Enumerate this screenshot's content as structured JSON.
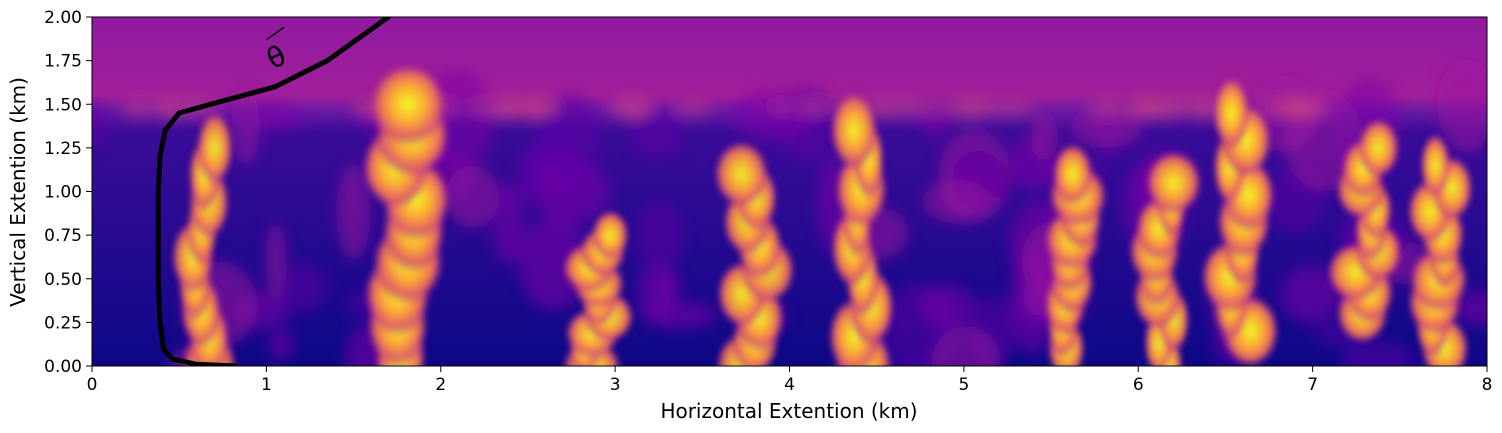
{
  "chart_data": {
    "type": "heatmap",
    "xlabel": "Horizontal Extention (km)",
    "ylabel": "Vertical Extention (km)",
    "xlim": [
      0,
      8
    ],
    "ylim": [
      0,
      2
    ],
    "xticks": [
      0,
      1,
      2,
      3,
      4,
      5,
      6,
      7,
      8
    ],
    "xtick_labels": [
      "0",
      "1",
      "2",
      "3",
      "4",
      "5",
      "6",
      "7",
      "8"
    ],
    "yticks": [
      0,
      0.25,
      0.5,
      0.75,
      1.0,
      1.25,
      1.5,
      1.75,
      2.0
    ],
    "ytick_labels": [
      "0.00",
      "0.25",
      "0.50",
      "0.75",
      "1.00",
      "1.25",
      "1.50",
      "1.75",
      "2.00"
    ],
    "colormap": "plasma",
    "colors": {
      "low": "#0d0887",
      "mid": "#9c179e",
      "high": "#f0f921",
      "profile_line": "#000000"
    },
    "field_description_regions": {
      "boundary_layer_top_km": 1.5,
      "hot_plumes_km": [
        {
          "x": 0.65,
          "y0": 0.0,
          "y1": 1.25,
          "strength": 0.85
        },
        {
          "x": 1.8,
          "y0": 0.05,
          "y1": 1.5,
          "strength": 1.0
        },
        {
          "x": 2.9,
          "y0": 0.0,
          "y1": 0.75,
          "strength": 0.9
        },
        {
          "x": 3.8,
          "y0": 0.0,
          "y1": 1.1,
          "strength": 0.85
        },
        {
          "x": 4.4,
          "y0": 0.0,
          "y1": 1.35,
          "strength": 0.95
        },
        {
          "x": 5.6,
          "y0": 0.1,
          "y1": 1.1,
          "strength": 0.95
        },
        {
          "x": 6.15,
          "y0": 0.0,
          "y1": 1.05,
          "strength": 0.9
        },
        {
          "x": 6.6,
          "y0": 0.2,
          "y1": 1.45,
          "strength": 1.0
        },
        {
          "x": 7.3,
          "y0": 0.3,
          "y1": 1.25,
          "strength": 0.9
        },
        {
          "x": 7.75,
          "y0": 0.1,
          "y1": 1.15,
          "strength": 0.95
        }
      ]
    },
    "profile_line": {
      "label": "θ",
      "x": [
        0.82,
        0.6,
        0.46,
        0.41,
        0.39,
        0.38,
        0.38,
        0.38,
        0.39,
        0.42,
        0.5,
        0.68,
        1.05,
        1.35,
        1.7
      ],
      "y": [
        0.0,
        0.01,
        0.04,
        0.1,
        0.25,
        0.5,
        0.75,
        1.0,
        1.2,
        1.35,
        1.45,
        1.5,
        1.6,
        1.75,
        2.0
      ]
    }
  }
}
